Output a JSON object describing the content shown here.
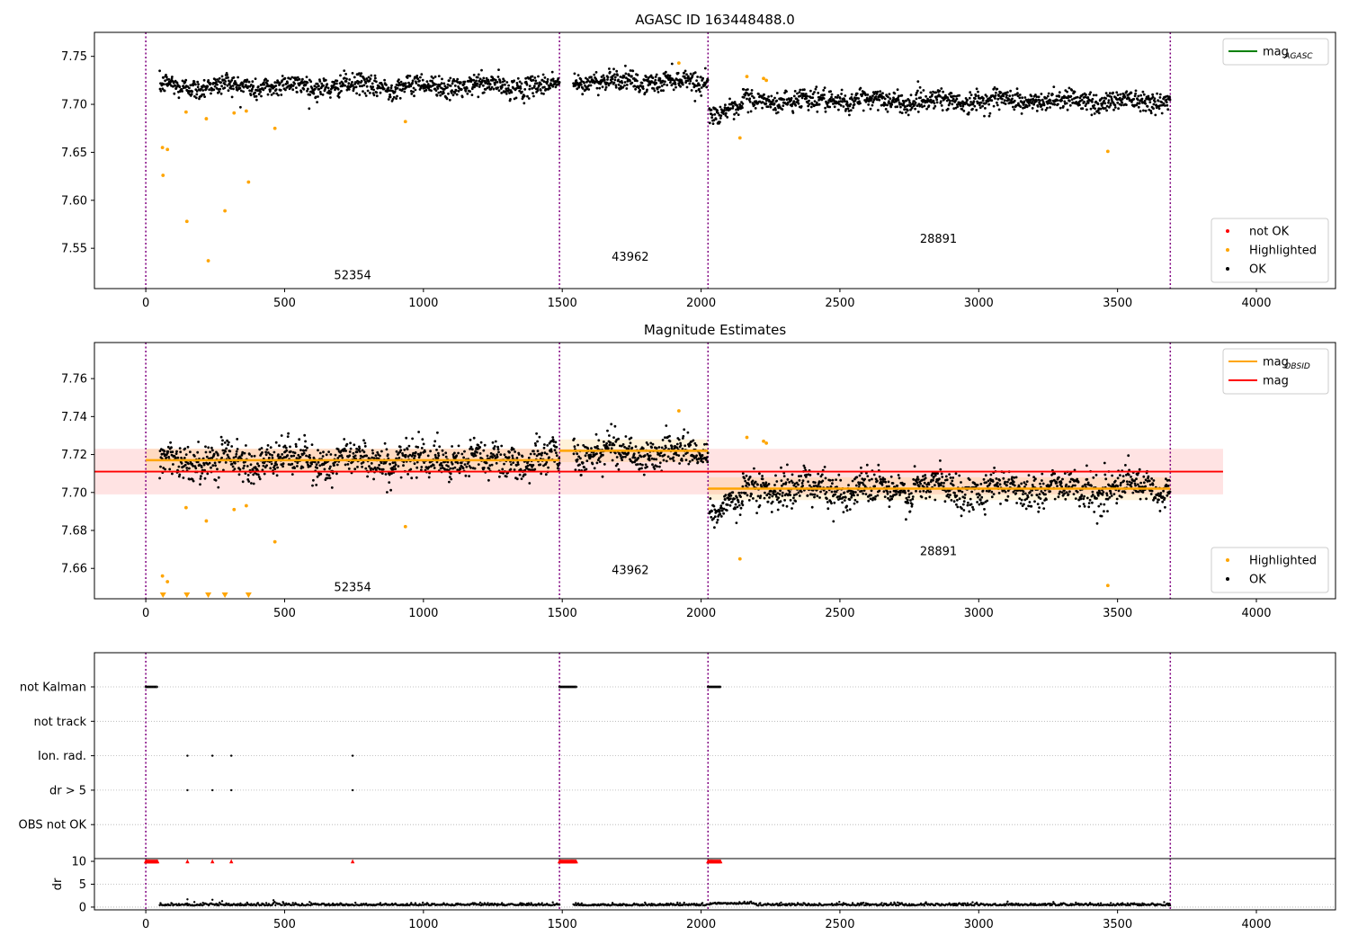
{
  "chart_data": [
    {
      "type": "scatter",
      "title": "AGASC ID 163448488.0",
      "xlim": [
        -185,
        4285
      ],
      "ylim": [
        7.508,
        7.775
      ],
      "xticks": [
        0,
        500,
        1000,
        1500,
        2000,
        2500,
        3000,
        3500,
        4000
      ],
      "yticks": [
        7.55,
        7.6,
        7.65,
        7.7,
        7.75
      ],
      "obs_boundaries": [
        0,
        1490,
        2025,
        3690
      ],
      "obsid_labels": [
        {
          "text": "52354",
          "x": 745,
          "y": 7.518
        },
        {
          "text": "43962",
          "x": 1745,
          "y": 7.537
        },
        {
          "text": "28891",
          "x": 2855,
          "y": 7.556
        }
      ],
      "baseline_segments": [
        {
          "x": [
            50,
            1490
          ],
          "level": 7.719,
          "spread": 0.012
        },
        {
          "x": [
            1540,
            2025
          ],
          "level": 7.724,
          "spread": 0.011
        },
        {
          "x": [
            2030,
            2150
          ],
          "level": 7.693,
          "spread": 0.01
        },
        {
          "x": [
            2150,
            3690
          ],
          "level": 7.704,
          "spread": 0.012
        }
      ],
      "highlighted_points": [
        [
          60,
          7.655
        ],
        [
          62,
          7.626
        ],
        [
          78,
          7.653
        ],
        [
          145,
          7.692
        ],
        [
          148,
          7.578
        ],
        [
          218,
          7.685
        ],
        [
          225,
          7.537
        ],
        [
          285,
          7.589
        ],
        [
          318,
          7.691
        ],
        [
          362,
          7.693
        ],
        [
          370,
          7.619
        ],
        [
          465,
          7.675
        ],
        [
          935,
          7.682
        ],
        [
          1920,
          7.743
        ],
        [
          2140,
          7.665
        ],
        [
          2165,
          7.729
        ],
        [
          2225,
          7.727
        ],
        [
          2235,
          7.725
        ],
        [
          3465,
          7.651
        ]
      ],
      "legends": [
        {
          "position": "upper-right",
          "entries": [
            {
              "name": "mag",
              "subscript": "AGASC",
              "kind": "line",
              "color": "#008000"
            }
          ]
        },
        {
          "position": "lower-right",
          "entries": [
            {
              "name": "not OK",
              "kind": "marker",
              "color": "#ff0000"
            },
            {
              "name": "Highlighted",
              "kind": "marker",
              "color": "#ffa500"
            },
            {
              "name": "OK",
              "kind": "marker",
              "color": "#000000"
            }
          ]
        }
      ]
    },
    {
      "type": "scatter",
      "title": "Magnitude Estimates",
      "xlim": [
        -185,
        4285
      ],
      "ylim": [
        7.644,
        7.779
      ],
      "xticks": [
        0,
        500,
        1000,
        1500,
        2000,
        2500,
        3000,
        3500,
        4000
      ],
      "yticks": [
        7.66,
        7.68,
        7.7,
        7.72,
        7.74,
        7.76
      ],
      "obs_boundaries": [
        0,
        1490,
        2025,
        3690
      ],
      "obsid_labels": [
        {
          "text": "52354",
          "x": 745,
          "y": 7.648
        },
        {
          "text": "43962",
          "x": 1745,
          "y": 7.657
        },
        {
          "text": "28891",
          "x": 2855,
          "y": 7.667
        }
      ],
      "mag": {
        "value": 7.711,
        "band": [
          7.699,
          7.723
        ],
        "x": [
          -185,
          3880
        ],
        "color": "#ff0000"
      },
      "mag_obsid": [
        {
          "x": [
            0,
            1490
          ],
          "value": 7.717,
          "band": [
            7.711,
            7.723
          ]
        },
        {
          "x": [
            1490,
            2025
          ],
          "value": 7.722,
          "band": [
            7.716,
            7.728
          ]
        },
        {
          "x": [
            2025,
            3690
          ],
          "value": 7.702,
          "band": [
            7.696,
            7.708
          ]
        }
      ],
      "baseline_segments": [
        {
          "x": [
            50,
            1490
          ],
          "level": 7.717,
          "spread": 0.01
        },
        {
          "x": [
            1540,
            2025
          ],
          "level": 7.721,
          "spread": 0.009
        },
        {
          "x": [
            2030,
            2150
          ],
          "level": 7.693,
          "spread": 0.008
        },
        {
          "x": [
            2150,
            3690
          ],
          "level": 7.702,
          "spread": 0.01
        }
      ],
      "highlighted_points": [
        [
          60,
          7.656
        ],
        [
          78,
          7.653
        ],
        [
          145,
          7.692
        ],
        [
          218,
          7.685
        ],
        [
          318,
          7.691
        ],
        [
          362,
          7.693
        ],
        [
          465,
          7.674
        ],
        [
          935,
          7.682
        ],
        [
          1920,
          7.743
        ],
        [
          2140,
          7.665
        ],
        [
          2165,
          7.729
        ],
        [
          2225,
          7.727
        ],
        [
          2235,
          7.726
        ],
        [
          3465,
          7.651
        ]
      ],
      "offscale_markers_x": [
        62,
        148,
        225,
        285,
        370
      ],
      "legends": [
        {
          "position": "upper-right",
          "entries": [
            {
              "name": "mag",
              "subscript": "OBSID",
              "kind": "line",
              "color": "#ffa500"
            },
            {
              "name": "mag",
              "kind": "line",
              "color": "#ff0000"
            }
          ]
        },
        {
          "position": "lower-right",
          "entries": [
            {
              "name": "Highlighted",
              "kind": "marker",
              "color": "#ffa500"
            },
            {
              "name": "OK",
              "kind": "marker",
              "color": "#000000"
            }
          ]
        }
      ]
    },
    {
      "type": "scatter",
      "title": "",
      "xlim": [
        -185,
        4285
      ],
      "obs_boundaries": [
        0,
        1490,
        2025,
        3690
      ],
      "flag_rows": [
        "not Kalman",
        "not track",
        "Ion. rad.",
        "dr > 5",
        "OBS not OK"
      ],
      "flag_points": {
        "not Kalman": [
          [
            0,
            42
          ],
          [
            1490,
            1550
          ],
          [
            2025,
            2070
          ]
        ],
        "not track": [],
        "Ion. rad.": [
          150,
          240,
          308,
          745
        ],
        "dr > 5": [
          150,
          240,
          308,
          745
        ],
        "OBS not OK": []
      },
      "dr": {
        "ylim": [
          -0.6,
          10.6
        ],
        "yticks": [
          0,
          5,
          10
        ],
        "ylabel": "dr",
        "threshold_markers_y": 10,
        "threshold_markers_x": [
          [
            0,
            42
          ],
          [
            150
          ],
          [
            240
          ],
          [
            308
          ],
          [
            745
          ],
          [
            1490,
            1550
          ],
          [
            2025,
            2070
          ]
        ],
        "typical_value": 0.35
      }
    }
  ]
}
